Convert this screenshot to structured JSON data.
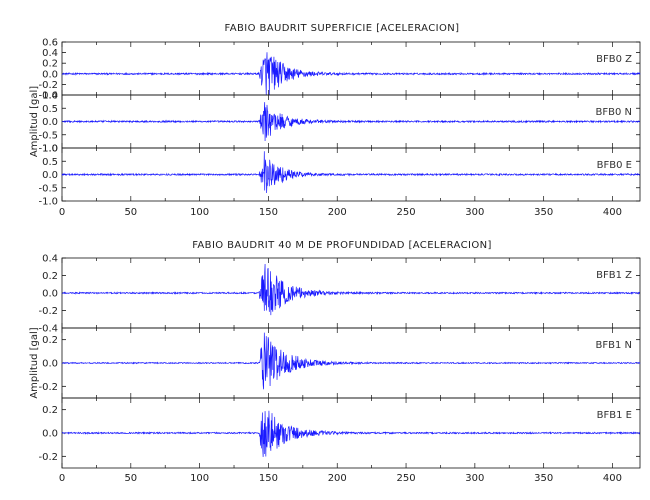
{
  "chart_data": [
    {
      "type": "line",
      "title": "FABIO BAUDRIT SUPERFICIE [ACELERACION]",
      "ylabel": "Amplitud [gal]",
      "xlim": [
        0,
        420
      ],
      "xticks": [
        0,
        50,
        100,
        150,
        200,
        250,
        300,
        350,
        400
      ],
      "xtick_labels": [
        "0",
        "50",
        "100",
        "150",
        "200",
        "250",
        "300",
        "350",
        "400"
      ],
      "grid": false,
      "panels": [
        {
          "channel": "BFB0   Z",
          "ylim": [
            -0.4,
            0.6
          ],
          "yticks": [
            -0.4,
            -0.2,
            0.0,
            0.2,
            0.4,
            0.6
          ],
          "ytick_labels": [
            "-0.4",
            "-0.2",
            "0.0",
            "0.2",
            "0.4",
            "0.6"
          ],
          "noise_amp": 0.015,
          "peak_amp": 0.55,
          "onset": 143,
          "peak_time": 148,
          "decay": 12
        },
        {
          "channel": "BFB0   N",
          "ylim": [
            -1.0,
            1.0
          ],
          "yticks": [
            -1.0,
            -0.5,
            0.0,
            0.5,
            1.0
          ],
          "ytick_labels": [
            "-1.0",
            "-0.5",
            "0.0",
            "0.5",
            "1.0"
          ],
          "noise_amp": 0.03,
          "peak_amp": 0.8,
          "onset": 143,
          "peak_time": 147,
          "decay": 12
        },
        {
          "channel": "BFB0   E",
          "ylim": [
            -1.0,
            1.0
          ],
          "yticks": [
            -1.0,
            -0.5,
            0.0,
            0.5,
            1.0
          ],
          "ytick_labels": [
            "-1.0",
            "-0.5",
            "0.0",
            "0.5",
            "1.0"
          ],
          "noise_amp": 0.03,
          "peak_amp": 0.9,
          "onset": 143,
          "peak_time": 147,
          "decay": 11
        }
      ]
    },
    {
      "type": "line",
      "title": "FABIO BAUDRIT 40 M DE PROFUNDIDAD [ACELERACION]",
      "ylabel": "Amplitud [gal]",
      "xlim": [
        0,
        420
      ],
      "xticks": [
        0,
        50,
        100,
        150,
        200,
        250,
        300,
        350,
        400
      ],
      "xtick_labels": [
        "0",
        "50",
        "100",
        "150",
        "200",
        "250",
        "300",
        "350",
        "400"
      ],
      "grid": false,
      "panels": [
        {
          "channel": "BFB1   Z",
          "ylim": [
            -0.4,
            0.4
          ],
          "yticks": [
            -0.4,
            -0.2,
            0.0,
            0.2,
            0.4
          ],
          "ytick_labels": [
            "-0.4",
            "-0.2",
            "0.0",
            "0.2",
            "0.4"
          ],
          "noise_amp": 0.008,
          "peak_amp": 0.38,
          "onset": 143,
          "peak_time": 147,
          "decay": 14
        },
        {
          "channel": "BFB1   N",
          "ylim": [
            -0.3,
            0.3
          ],
          "yticks": [
            -0.2,
            0.0,
            0.2
          ],
          "ytick_labels": [
            "-0.2",
            "0.0",
            "0.2"
          ],
          "noise_amp": 0.005,
          "peak_amp": 0.3,
          "onset": 143,
          "peak_time": 146,
          "decay": 15
        },
        {
          "channel": "BFB1   E",
          "ylim": [
            -0.3,
            0.3
          ],
          "yticks": [
            -0.2,
            0.0,
            0.2
          ],
          "ytick_labels": [
            "-0.2",
            "0.0",
            "0.2"
          ],
          "noise_amp": 0.006,
          "peak_amp": 0.28,
          "onset": 143,
          "peak_time": 146,
          "decay": 14
        }
      ]
    }
  ],
  "colors": {
    "trace": "#1a1aff",
    "axis": "#111111"
  }
}
